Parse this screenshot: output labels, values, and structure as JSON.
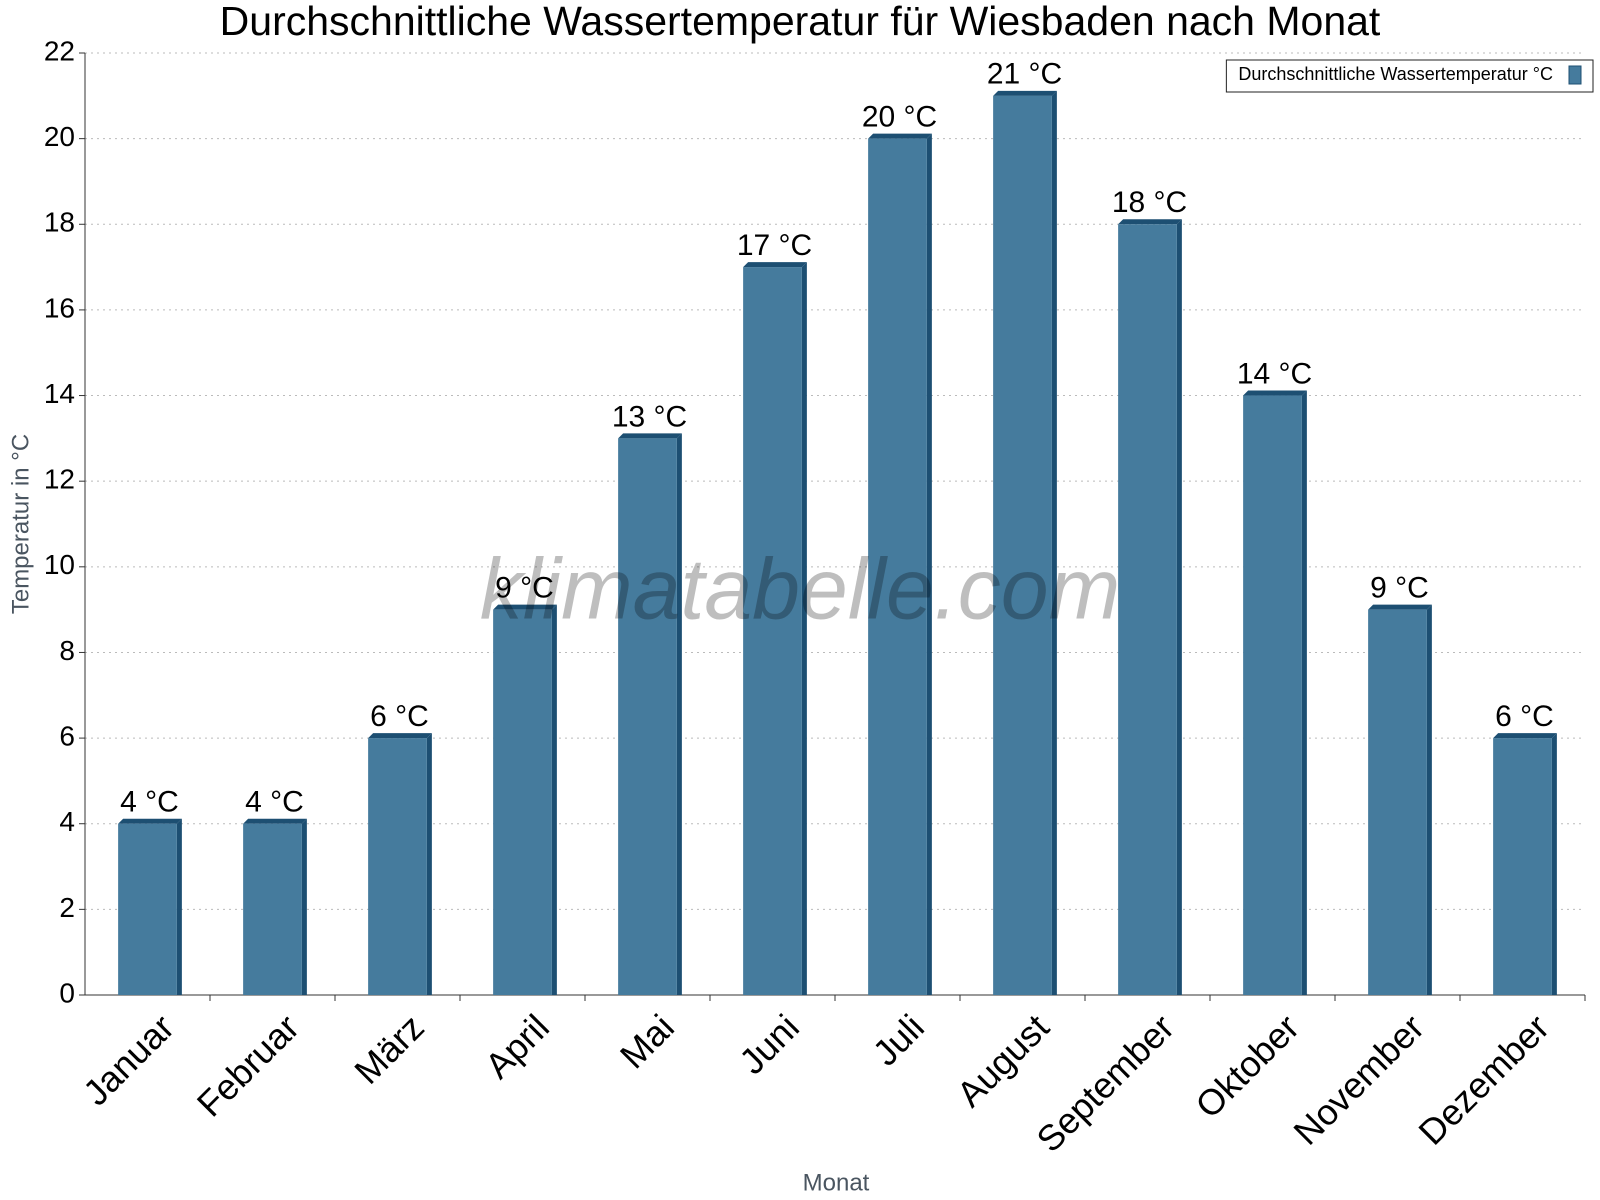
{
  "chart_data": {
    "type": "bar",
    "title": "Durchschnittliche Wassertemperatur für Wiesbaden nach Monat",
    "x_label": "Monat",
    "y_label": "Temperatur in °C",
    "watermark": "klimatabelle.com",
    "categories": [
      "Januar",
      "Februar",
      "März",
      "April",
      "Mai",
      "Juni",
      "Juli",
      "August",
      "September",
      "Oktober",
      "November",
      "Dezember"
    ],
    "series": [
      {
        "name": "Durchschnittliche Wassertemperatur °C",
        "color": "#457b9d",
        "values": [
          4,
          4,
          6,
          9,
          13,
          17,
          20,
          21,
          18,
          14,
          9,
          6
        ],
        "value_labels": [
          "4 °C",
          "4 °C",
          "6 °C",
          "9 °C",
          "13 °C",
          "17 °C",
          "20 °C",
          "21 °C",
          "18 °C",
          "14 °C",
          "9 °C",
          "6 °C"
        ]
      }
    ],
    "ylim": [
      0,
      22
    ],
    "yticks": [
      0,
      2,
      4,
      6,
      8,
      10,
      12,
      14,
      16,
      18,
      20,
      22
    ],
    "grid": true,
    "legend": "top-right"
  }
}
